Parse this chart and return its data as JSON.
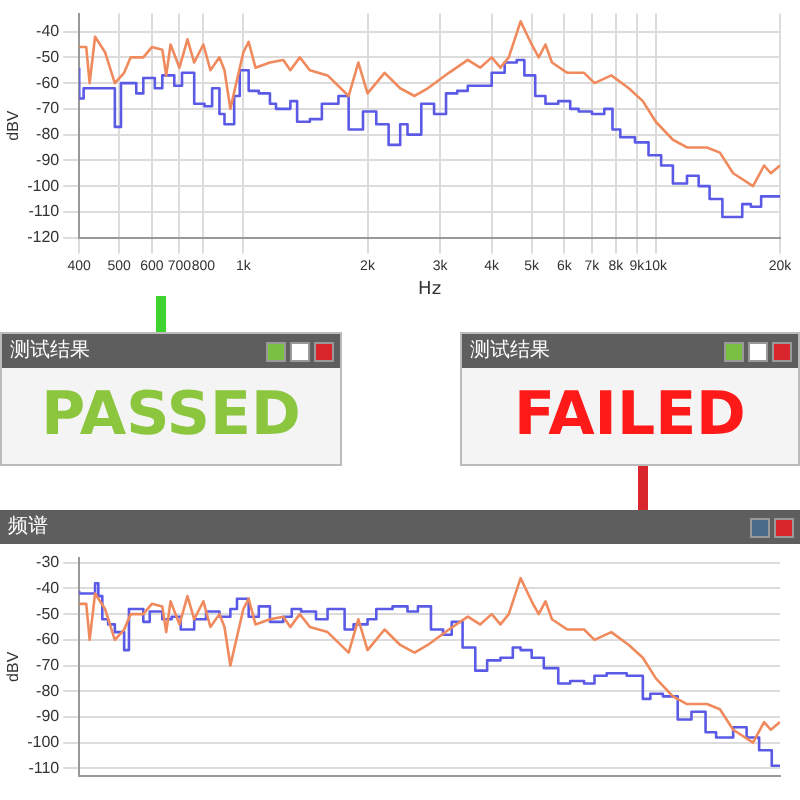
{
  "chart_data": [
    {
      "type": "line",
      "xlabel": "Hz",
      "ylabel": "dBV",
      "log": "x",
      "grid": true,
      "marker": "none",
      "line_style": "solid",
      "xlim": [
        400,
        20000
      ],
      "ylim": [
        -120,
        -33
      ],
      "xticks": [
        400,
        500,
        600,
        700,
        800,
        {
          "value": 1000,
          "label": "1k"
        },
        {
          "value": 2000,
          "label": "2k"
        },
        {
          "value": 3000,
          "label": "3k"
        },
        {
          "value": 4000,
          "label": "4k"
        },
        {
          "value": 5000,
          "label": "5k"
        },
        {
          "value": 6000,
          "label": "6k"
        },
        {
          "value": 7000,
          "label": "7k"
        },
        {
          "value": 8000,
          "label": "8k"
        },
        {
          "value": 9000,
          "label": "9k"
        },
        {
          "value": 10000,
          "label": "10k"
        },
        {
          "value": 20000,
          "label": "20k"
        }
      ],
      "yticks": [
        -40,
        -50,
        -60,
        -70,
        -80,
        -90,
        -100,
        -110,
        -120
      ],
      "series": [
        {
          "type": "line",
          "color": "#f08a5d",
          "x": [
            400,
            416,
            424,
            437,
            462,
            488,
            514,
            533,
            572,
            600,
            636,
            650,
            666,
            700,
            732,
            760,
            800,
            832,
            875,
            900,
            930,
            1000,
            1030,
            1070,
            1160,
            1250,
            1300,
            1370,
            1450,
            1600,
            1800,
            1900,
            2000,
            2200,
            2400,
            2600,
            2800,
            3150,
            3500,
            3750,
            4000,
            4200,
            4400,
            4700,
            5000,
            5200,
            5400,
            5600,
            6100,
            6700,
            7100,
            7800,
            8600,
            9300,
            10000,
            11000,
            11900,
            13300,
            14300,
            15400,
            17200,
            18300,
            19000,
            20000
          ],
          "values": [
            -46,
            -46,
            -60,
            -42,
            -48,
            -60,
            -56,
            -50,
            -50,
            -46,
            -47,
            -57,
            -45,
            -54,
            -43,
            -52,
            -45,
            -55,
            -50,
            -55,
            -70,
            -48,
            -44,
            -54,
            -52,
            -51,
            -55,
            -50,
            -55,
            -57,
            -65,
            -52,
            -64,
            -56,
            -62,
            -65,
            -62,
            -56,
            -51,
            -54,
            -50,
            -54,
            -50,
            -36,
            -45,
            -50,
            -45,
            -52,
            -56,
            -56,
            -60,
            -57,
            -62,
            -67,
            -75,
            -82,
            -85,
            -85,
            -87,
            -95,
            -100,
            -92,
            -95,
            -92
          ]
        },
        {
          "type": "step",
          "color": "#5a5ae6",
          "x": [
            400,
            410,
            445,
            488,
            490,
            505,
            514,
            550,
            572,
            610,
            636,
            680,
            710,
            760,
            805,
            840,
            875,
            900,
            950,
            980,
            1030,
            1090,
            1160,
            1200,
            1300,
            1350,
            1450,
            1550,
            1700,
            1800,
            1950,
            2100,
            2250,
            2400,
            2500,
            2700,
            2900,
            3100,
            3300,
            3500,
            3750,
            4000,
            4300,
            4600,
            4800,
            5100,
            5400,
            5800,
            6200,
            6500,
            7000,
            7500,
            7850,
            8200,
            8900,
            9600,
            10300,
            11000,
            11900,
            12700,
            13500,
            14500,
            16200,
            17000,
            18000,
            19600,
            20000
          ],
          "values": [
            -54,
            -66,
            -62,
            -62,
            -77,
            -77,
            -60,
            -60,
            -64,
            -58,
            -62,
            -57,
            -61,
            -56,
            -68,
            -69,
            -62,
            -72,
            -76,
            -65,
            -55,
            -63,
            -64,
            -68,
            -70,
            -67,
            -75,
            -74,
            -68,
            -65,
            -78,
            -71,
            -76,
            -84,
            -76,
            -80,
            -68,
            -72,
            -64,
            -63,
            -61,
            -61,
            -56,
            -52,
            -51,
            -57,
            -65,
            -68,
            -67,
            -70,
            -71,
            -72,
            -70,
            -78,
            -81,
            -83,
            -88,
            -92,
            -99,
            -96,
            -100,
            -105,
            -112,
            -107,
            -108,
            -104,
            -104
          ]
        }
      ]
    },
    {
      "type": "other",
      "title": "测试结果",
      "annotations": [
        "PASSED"
      ],
      "color": "#8cc63f"
    },
    {
      "type": "other",
      "title": "测试结果",
      "annotations": [
        "FAILED"
      ],
      "color": "#ff1a1a"
    },
    {
      "type": "line",
      "title": "频谱",
      "ylabel": "dBV",
      "log": "x",
      "grid": true,
      "marker": "none",
      "line_style": "solid",
      "tick_labels": "y",
      "xlim": [
        400,
        20000
      ],
      "ylim": [
        -113,
        -28
      ],
      "xticks": [
        {
          "value": 400,
          "label": null
        },
        {
          "value": 500,
          "label": null
        },
        {
          "value": 600,
          "label": null
        },
        {
          "value": 700,
          "label": null
        },
        {
          "value": 800,
          "label": null
        },
        {
          "value": 1000,
          "label": null
        },
        {
          "value": 2000,
          "label": null
        },
        {
          "value": 3000,
          "label": null
        },
        {
          "value": 4000,
          "label": null
        },
        {
          "value": 5000,
          "label": null
        },
        {
          "value": 6000,
          "label": null
        },
        {
          "value": 7000,
          "label": null
        },
        {
          "value": 8000,
          "label": null
        },
        {
          "value": 9000,
          "label": null
        },
        {
          "value": 10000,
          "label": null
        },
        {
          "value": 20000,
          "label": null
        }
      ],
      "yticks": [
        -30,
        -40,
        -50,
        -60,
        -70,
        -80,
        -90,
        -100,
        -110
      ],
      "series": [
        {
          "type": "line",
          "color": "#f08a5d",
          "x": [
            400,
            416,
            424,
            437,
            462,
            488,
            514,
            533,
            572,
            600,
            636,
            650,
            666,
            700,
            732,
            760,
            800,
            832,
            875,
            900,
            930,
            1000,
            1030,
            1070,
            1160,
            1250,
            1300,
            1370,
            1450,
            1600,
            1800,
            1900,
            2000,
            2200,
            2400,
            2600,
            2800,
            3150,
            3500,
            3750,
            4000,
            4200,
            4400,
            4700,
            5000,
            5200,
            5400,
            5600,
            6100,
            6700,
            7100,
            7800,
            8600,
            9300,
            10000,
            11000,
            11900,
            13300,
            14300,
            15400,
            17200,
            18300,
            19000,
            20000
          ],
          "values": [
            -46,
            -46,
            -60,
            -42,
            -48,
            -60,
            -56,
            -50,
            -50,
            -46,
            -47,
            -57,
            -45,
            -54,
            -43,
            -52,
            -45,
            -55,
            -50,
            -55,
            -70,
            -48,
            -44,
            -54,
            -52,
            -51,
            -55,
            -50,
            -55,
            -57,
            -65,
            -52,
            -64,
            -56,
            -62,
            -65,
            -62,
            -56,
            -51,
            -54,
            -50,
            -54,
            -50,
            -36,
            -45,
            -50,
            -45,
            -52,
            -56,
            -56,
            -60,
            -57,
            -62,
            -67,
            -75,
            -82,
            -85,
            -85,
            -87,
            -95,
            -100,
            -92,
            -95,
            -92
          ]
        },
        {
          "type": "step",
          "color": "#5a5ae6",
          "x": [
            400,
            437,
            445,
            455,
            470,
            488,
            514,
            528,
            540,
            572,
            593,
            636,
            670,
            705,
            760,
            812,
            875,
            930,
            965,
            1030,
            1090,
            1160,
            1250,
            1310,
            1380,
            1500,
            1600,
            1760,
            1850,
            2000,
            2100,
            2300,
            2500,
            2650,
            2850,
            3050,
            3200,
            3400,
            3650,
            3900,
            4200,
            4500,
            4700,
            5000,
            5350,
            5800,
            6200,
            6700,
            7100,
            7600,
            8500,
            9300,
            9700,
            10400,
            11300,
            12200,
            13200,
            14000,
            15400,
            16600,
            17800,
            19100,
            20000
          ],
          "values": [
            -41,
            -42,
            -38,
            -43,
            -52,
            -54,
            -57,
            -64,
            -48,
            -48,
            -53,
            -49,
            -52,
            -51,
            -56,
            -52,
            -49,
            -51,
            -48,
            -44,
            -51,
            -47,
            -53,
            -51,
            -48,
            -49,
            -52,
            -48,
            -56,
            -54,
            -52,
            -48,
            -47,
            -49,
            -47,
            -56,
            -58,
            -53,
            -63,
            -72,
            -68,
            -67,
            -63,
            -64,
            -67,
            -71,
            -77,
            -76,
            -77,
            -74,
            -73,
            -74,
            -83,
            -81,
            -82,
            -91,
            -88,
            -96,
            -98,
            -94,
            -98,
            -103,
            -109
          ]
        }
      ]
    }
  ]
}
